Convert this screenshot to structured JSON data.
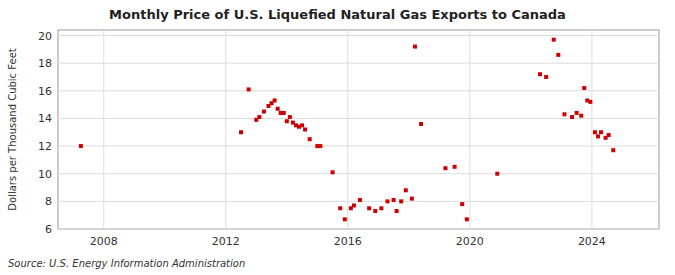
{
  "chart_data": {
    "type": "scatter",
    "title": "Monthly Price of U.S. Liquefied Natural Gas Exports to Canada",
    "ylabel": "Dollars per Thousand Cubic Feet",
    "annotations": [
      "Source: U.S. Energy Information Administration"
    ],
    "xlim": [
      2006.5,
      2026.2
    ],
    "ylim": [
      6,
      20.4
    ],
    "xticks": [
      2008,
      2012,
      2016,
      2020,
      2024
    ],
    "yticks": [
      6,
      8,
      10,
      12,
      14,
      16,
      18,
      20
    ],
    "grid": true,
    "color": "#cc0000",
    "marker": "square",
    "x": [
      2007.25,
      2012.5,
      2012.75,
      2013.0,
      2013.1,
      2013.25,
      2013.4,
      2013.5,
      2013.6,
      2013.7,
      2013.8,
      2013.9,
      2014.0,
      2014.1,
      2014.2,
      2014.3,
      2014.4,
      2014.5,
      2014.6,
      2014.75,
      2015.0,
      2015.1,
      2015.5,
      2015.75,
      2015.9,
      2016.1,
      2016.2,
      2016.4,
      2016.7,
      2016.9,
      2017.1,
      2017.3,
      2017.5,
      2017.6,
      2017.75,
      2017.9,
      2018.1,
      2018.2,
      2018.4,
      2019.2,
      2019.5,
      2019.75,
      2019.9,
      2020.9,
      2022.3,
      2022.5,
      2022.75,
      2022.9,
      2023.1,
      2023.35,
      2023.5,
      2023.65,
      2023.75,
      2023.85,
      2023.95,
      2024.1,
      2024.2,
      2024.3,
      2024.45,
      2024.55,
      2024.7
    ],
    "values": [
      12.0,
      13.0,
      16.1,
      13.9,
      14.1,
      14.5,
      14.9,
      15.1,
      15.3,
      14.7,
      14.4,
      14.4,
      13.8,
      14.1,
      13.7,
      13.5,
      13.4,
      13.5,
      13.2,
      12.5,
      12.0,
      12.0,
      10.1,
      7.5,
      6.7,
      7.5,
      7.7,
      8.1,
      7.5,
      7.3,
      7.5,
      8.0,
      8.1,
      7.3,
      8.0,
      8.8,
      8.2,
      19.2,
      13.6,
      10.4,
      10.5,
      7.8,
      6.7,
      10.0,
      17.2,
      17.0,
      19.7,
      18.6,
      14.3,
      14.1,
      14.4,
      14.2,
      16.2,
      15.3,
      15.2,
      13.0,
      12.7,
      13.0,
      12.6,
      12.8,
      11.7
    ]
  }
}
